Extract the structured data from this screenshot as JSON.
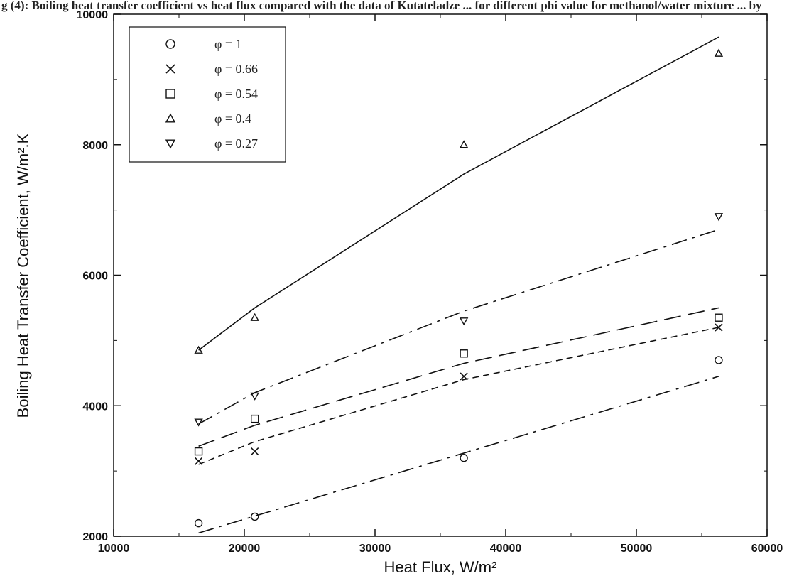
{
  "caption": "g (4): Boiling heat transfer coefficient vs heat flux compared with the data of Kutateladze ... for different phi value for methanol/water mixture ... by",
  "chart_data": {
    "type": "scatter",
    "title": "",
    "xlabel": "Heat Flux, W/m²",
    "ylabel": "Boiling Heat Transfer Coefficient, W/m².K",
    "xlim": [
      10000,
      60000
    ],
    "ylim": [
      2000,
      10000
    ],
    "xticks": [
      10000,
      20000,
      30000,
      40000,
      50000,
      60000
    ],
    "yticks": [
      2000,
      4000,
      6000,
      8000,
      10000
    ],
    "grid": false,
    "legend_position": "top-left",
    "series": [
      {
        "name": "φ = 1",
        "marker": "circle",
        "x": [
          16500,
          20800,
          36800,
          56300
        ],
        "y": [
          2200,
          2300,
          3200,
          4700
        ],
        "fit_x": [
          16500,
          56300
        ],
        "fit_y": [
          2050,
          4450
        ],
        "line_style": "dash-dot"
      },
      {
        "name": "φ = 0.66",
        "marker": "x",
        "x": [
          16500,
          20800,
          36800,
          56300
        ],
        "y": [
          3150,
          3300,
          4450,
          5200
        ],
        "fit_x": [
          16500,
          20800,
          36800,
          56300
        ],
        "fit_y": [
          3100,
          3450,
          4400,
          5200
        ],
        "line_style": "short-dash"
      },
      {
        "name": "φ = 0.54",
        "marker": "square",
        "x": [
          16500,
          20800,
          36800,
          56300
        ],
        "y": [
          3300,
          3800,
          4800,
          5350
        ],
        "fit_x": [
          16500,
          20800,
          36800,
          56300
        ],
        "fit_y": [
          3380,
          3700,
          4650,
          5500
        ],
        "line_style": "long-dash"
      },
      {
        "name": "φ = 0.4",
        "marker": "triangle-up",
        "x": [
          16500,
          20800,
          36800,
          56300
        ],
        "y": [
          4850,
          5350,
          8000,
          9400
        ],
        "fit_x": [
          16500,
          20800,
          36800,
          56300
        ],
        "fit_y": [
          4850,
          5500,
          7550,
          9650
        ],
        "line_style": "solid"
      },
      {
        "name": "φ = 0.27",
        "marker": "triangle-down",
        "x": [
          16500,
          20800,
          36800,
          56300
        ],
        "y": [
          3750,
          4150,
          5300,
          6900
        ],
        "fit_x": [
          16500,
          20800,
          36800,
          56300
        ],
        "fit_y": [
          3720,
          4200,
          5450,
          6700
        ],
        "line_style": "dash-dot"
      }
    ]
  }
}
